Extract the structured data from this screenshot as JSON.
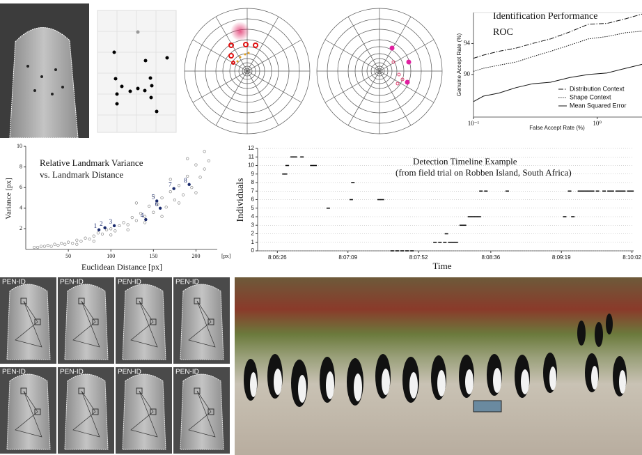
{
  "chart_data": [
    {
      "type": "line",
      "title": "Identification Performance",
      "subtitle": "ROC",
      "x_label": "False Accept Rate (%)",
      "y_label": "Genuine Accept Rate (%)",
      "log_x": true,
      "xlim": [
        0.1,
        2.3
      ],
      "ylim": [
        84.5,
        98
      ],
      "xticks": [
        {
          "value": 0.1,
          "label": "10⁻¹"
        },
        {
          "value": 1,
          "label": "10⁰"
        }
      ],
      "yticks": [
        90,
        94
      ],
      "legend": "lower right",
      "x": [
        0.1,
        0.12,
        0.16,
        0.22,
        0.3,
        0.42,
        0.6,
        0.85,
        1.2,
        1.7,
        2.3
      ],
      "series": [
        {
          "name": "Distribution Context",
          "color": "#111111",
          "dash": "dashdot",
          "values": [
            92.1,
            92.5,
            93.0,
            93.4,
            94.0,
            94.6,
            95.5,
            96.5,
            96.6,
            97.2,
            97.8
          ]
        },
        {
          "name": "Shape Context",
          "color": "#111111",
          "dash": "dotted",
          "values": [
            90.4,
            90.8,
            91.2,
            91.6,
            92.3,
            93.0,
            93.8,
            94.6,
            94.9,
            95.4,
            95.6
          ]
        },
        {
          "name": "Mean Squared Error",
          "color": "#111111",
          "dash": "solid",
          "values": [
            86.5,
            87.2,
            87.6,
            88.3,
            88.8,
            89.0,
            89.6,
            90.0,
            90.2,
            90.8,
            91.3
          ]
        }
      ]
    },
    {
      "type": "scatter",
      "title": "Relative Landmark Variance",
      "subtitle": "vs. Landmark Distance",
      "x_label": "Euclidean Distance [px]",
      "y_label": "Variance [px]",
      "x_unit": "[px]",
      "xlim": [
        0,
        225
      ],
      "ylim": [
        0,
        10
      ],
      "xticks": [
        50,
        100,
        150,
        200
      ],
      "yticks": [
        2,
        4,
        6,
        8,
        10
      ],
      "marker": "open",
      "color": "#777777",
      "x": [
        10,
        14,
        18,
        22,
        26,
        30,
        34,
        38,
        42,
        46,
        50,
        55,
        60,
        65,
        70,
        75,
        80,
        85,
        90,
        95,
        100,
        105,
        110,
        115,
        120,
        125,
        130,
        135,
        140,
        145,
        150,
        155,
        160,
        165,
        170,
        175,
        180,
        185,
        190,
        195,
        200,
        205,
        210,
        215,
        60,
        80,
        100,
        120,
        140,
        160,
        180,
        200,
        210,
        130,
        150,
        170,
        190
      ],
      "values": [
        0.2,
        0.2,
        0.3,
        0.3,
        0.4,
        0.3,
        0.5,
        0.4,
        0.6,
        0.5,
        0.7,
        0.6,
        0.9,
        0.8,
        1.1,
        1.0,
        1.3,
        1.6,
        1.5,
        1.9,
        2.0,
        1.8,
        2.3,
        2.6,
        2.4,
        3.1,
        2.8,
        3.5,
        3.2,
        4.2,
        3.6,
        4.4,
        5.0,
        4.1,
        5.6,
        4.8,
        6.2,
        5.3,
        7.1,
        6.0,
        8.2,
        7.0,
        9.5,
        8.6,
        0.5,
        0.8,
        1.4,
        1.9,
        2.6,
        3.2,
        4.5,
        5.5,
        7.8,
        4.5,
        5.2,
        6.8,
        8.8
      ],
      "highlights": {
        "color": "#1a2a6c",
        "labels": [
          "1",
          "2",
          "3",
          "4",
          "5",
          "6",
          "7",
          "8"
        ],
        "x": [
          86,
          93,
          104,
          141,
          154,
          158,
          174,
          192
        ],
        "values": [
          1.9,
          2.1,
          2.3,
          2.9,
          4.7,
          4.0,
          5.9,
          6.3
        ]
      }
    },
    {
      "type": "scatter",
      "title": "Detection Timeline Example",
      "subtitle": "(from field trial on Robben Island, South Africa)",
      "x_label": "Time",
      "y_label": "Individuals",
      "marker": "dash",
      "color": "#111111",
      "grid": true,
      "xlim": [
        29174,
        29403
      ],
      "ylim": [
        0,
        12
      ],
      "xticks": [
        {
          "value": 29186,
          "label": "8:06:26"
        },
        {
          "value": 29229,
          "label": "8:07:09"
        },
        {
          "value": 29272,
          "label": "8:07:52"
        },
        {
          "value": 29316,
          "label": "8:08:36"
        },
        {
          "value": 29359,
          "label": "8:09:19"
        },
        {
          "value": 29402,
          "label": "8:10:02"
        }
      ],
      "yticks": [
        0,
        1,
        2,
        3,
        4,
        5,
        6,
        7,
        8,
        9,
        10,
        11,
        12
      ],
      "x": [
        29190,
        29191,
        29192,
        29195,
        29197,
        29201,
        29207,
        29209,
        29217,
        29231,
        29232,
        29248,
        29250,
        29256,
        29259,
        29262,
        29265,
        29268,
        29282,
        29285,
        29288,
        29289,
        29291,
        29293,
        29295,
        29298,
        29300,
        29303,
        29305,
        29307,
        29309,
        29310,
        29313,
        29326,
        29361,
        29364,
        29366,
        29370,
        29372,
        29374,
        29376,
        29378,
        29381,
        29385,
        29388,
        29390,
        29393,
        29395,
        29397,
        29400,
        29402
      ],
      "values": [
        9,
        9,
        10,
        11,
        11,
        11,
        10,
        10,
        5,
        6,
        8,
        6,
        6,
        0,
        0,
        0,
        0,
        0,
        1,
        1,
        1,
        2,
        1,
        1,
        1,
        3,
        3,
        4,
        4,
        4,
        4,
        7,
        7,
        7,
        4,
        7,
        4,
        7,
        7,
        7,
        7,
        7,
        7,
        7,
        7,
        7,
        7,
        7,
        7,
        7,
        7
      ]
    }
  ],
  "photos": {
    "thumbnail_label": "PEN-ID"
  }
}
